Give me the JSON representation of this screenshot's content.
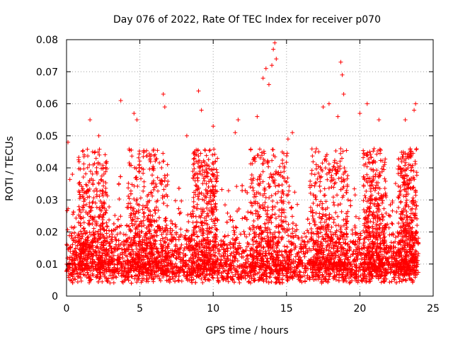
{
  "chart_data": {
    "type": "scatter",
    "title": "Day 076 of 2022, Rate Of TEC Index for receiver p070",
    "xlabel": "GPS time / hours",
    "ylabel": "ROTI / TECUs",
    "xlim": [
      0,
      25
    ],
    "ylim": [
      0,
      0.08
    ],
    "x_ticks": [
      "0",
      "5",
      "10",
      "15",
      "20",
      "25"
    ],
    "y_ticks": [
      "0",
      "0.01",
      "0.02",
      "0.03",
      "0.04",
      "0.05",
      "0.06",
      "0.07",
      "0.08"
    ],
    "grid": true,
    "marker": "plus",
    "marker_color": "#ff0000",
    "series": [
      {
        "points": [
          [
            0.1,
            0.048
          ],
          [
            0.4,
            0.038
          ],
          [
            1.6,
            0.055
          ],
          [
            2.2,
            0.05
          ],
          [
            3.7,
            0.061
          ],
          [
            4.6,
            0.057
          ],
          [
            4.8,
            0.055
          ],
          [
            6.6,
            0.063
          ],
          [
            6.7,
            0.059
          ],
          [
            8.2,
            0.05
          ],
          [
            9.0,
            0.064
          ],
          [
            9.2,
            0.058
          ],
          [
            10.0,
            0.053
          ],
          [
            11.5,
            0.051
          ],
          [
            11.7,
            0.055
          ],
          [
            13.0,
            0.056
          ],
          [
            13.4,
            0.068
          ],
          [
            13.6,
            0.071
          ],
          [
            13.8,
            0.066
          ],
          [
            14.0,
            0.072
          ],
          [
            14.1,
            0.077
          ],
          [
            14.2,
            0.079
          ],
          [
            14.3,
            0.074
          ],
          [
            15.1,
            0.049
          ],
          [
            15.4,
            0.051
          ],
          [
            17.5,
            0.059
          ],
          [
            17.9,
            0.06
          ],
          [
            18.5,
            0.056
          ],
          [
            18.7,
            0.073
          ],
          [
            18.8,
            0.069
          ],
          [
            18.9,
            0.063
          ],
          [
            20.0,
            0.057
          ],
          [
            20.5,
            0.06
          ],
          [
            21.3,
            0.055
          ],
          [
            23.1,
            0.055
          ],
          [
            23.7,
            0.058
          ],
          [
            23.8,
            0.06
          ]
        ]
      }
    ]
  }
}
